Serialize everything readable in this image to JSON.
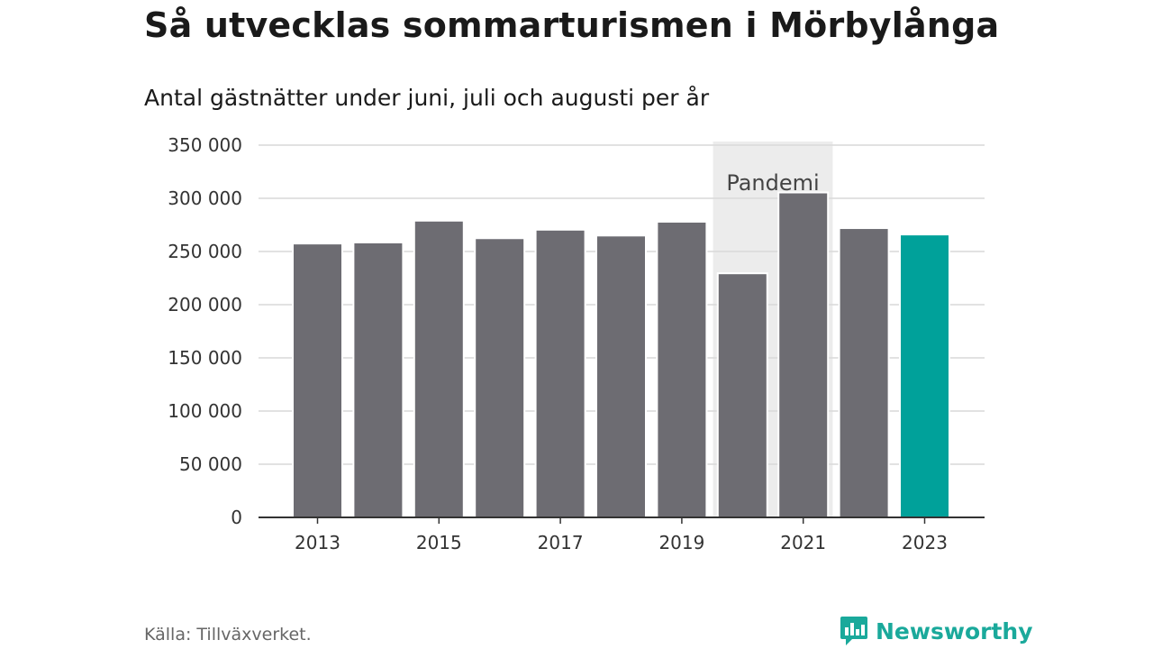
{
  "chart_data": {
    "type": "bar",
    "title": "Så utvecklas sommarturismen i Mörbylånga",
    "subtitle": "Antal gästnätter under juni, juli och augusti per år",
    "categories": [
      "2013",
      "2014",
      "2015",
      "2016",
      "2017",
      "2018",
      "2019",
      "2020",
      "2021",
      "2022",
      "2023"
    ],
    "values": [
      257500,
      258500,
      279000,
      262500,
      270500,
      265000,
      278000,
      229500,
      305500,
      272000,
      266000
    ],
    "ylim": [
      0,
      350000
    ],
    "y_ticks": [
      0,
      50000,
      100000,
      150000,
      200000,
      250000,
      300000,
      350000
    ],
    "y_tick_labels": [
      "0",
      "50 000",
      "100 000",
      "150 000",
      "200 000",
      "250 000",
      "300 000",
      "350 000"
    ],
    "x_tick_labels": [
      "2013",
      "2015",
      "2017",
      "2019",
      "2021",
      "2023"
    ],
    "grid": true,
    "highlight_category": "2023",
    "colors": {
      "bar": "#6d6c72",
      "highlight": "#00a19a",
      "band": "#ececec",
      "grid": "#d9d9d9",
      "axis": "#333333"
    },
    "annotation": {
      "label": "Pandemi",
      "from": "2020",
      "to": "2021"
    }
  },
  "footer": {
    "source": "Källa: Tillväxverket.",
    "brand": "Newsworthy",
    "brand_icon": "newsworthy-logo-icon",
    "brand_color": "#1aa99b"
  }
}
